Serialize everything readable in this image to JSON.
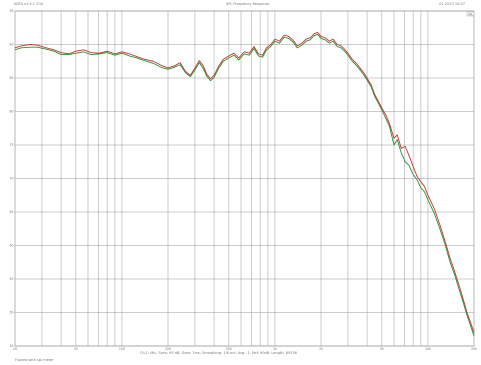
{
  "header": {
    "left": "ARTA v1.9.1 ©IA",
    "center": "SPL Frequency Response",
    "right": "01-2023 10:47"
  },
  "footer": {
    "info": "Ch.1: Mic, Sens: 95 dB; Gate: 7ms; Smoothing: 1/6 oct; Avg.: 1; Ref: 90dB; Length: 65536",
    "note": "Fsaved with spl meter"
  },
  "chart_data": {
    "type": "line",
    "title": "SPL Frequency Response",
    "xlabel": "",
    "ylabel": "",
    "x_scale": "log",
    "xlim": [
      20,
      20000
    ],
    "ylim": [
      45,
      95
    ],
    "grid": true,
    "x_ticks": [
      "20",
      "50",
      "100",
      "200",
      "500",
      "1k",
      "2k",
      "5k",
      "10k",
      "20k"
    ],
    "y_ticks": [
      "95",
      "90",
      "85",
      "80",
      "75",
      "70",
      "65",
      "60",
      "55",
      "50",
      "45"
    ],
    "x_tick_values": [
      20,
      50,
      100,
      200,
      500,
      1000,
      2000,
      5000,
      10000,
      20000
    ],
    "y_tick_values": [
      95,
      90,
      85,
      80,
      75,
      70,
      65,
      60,
      55,
      50,
      45
    ],
    "legend_label": "SPL",
    "series": [
      {
        "color": "#c0392b",
        "points": [
          [
            20,
            89.5
          ],
          [
            22,
            89.8
          ],
          [
            25,
            90.0
          ],
          [
            28,
            89.9
          ],
          [
            32,
            89.5
          ],
          [
            36,
            89.2
          ],
          [
            40,
            88.8
          ],
          [
            45,
            88.6
          ],
          [
            50,
            89.0
          ],
          [
            56,
            89.2
          ],
          [
            63,
            88.8
          ],
          [
            71,
            88.7
          ],
          [
            80,
            89.0
          ],
          [
            90,
            88.6
          ],
          [
            100,
            88.9
          ],
          [
            112,
            88.6
          ],
          [
            125,
            88.2
          ],
          [
            140,
            87.8
          ],
          [
            160,
            87.5
          ],
          [
            180,
            86.9
          ],
          [
            200,
            86.5
          ],
          [
            220,
            86.8
          ],
          [
            240,
            87.3
          ],
          [
            260,
            86.0
          ],
          [
            280,
            85.4
          ],
          [
            300,
            86.5
          ],
          [
            320,
            87.6
          ],
          [
            340,
            86.8
          ],
          [
            360,
            85.5
          ],
          [
            380,
            84.9
          ],
          [
            400,
            85.4
          ],
          [
            430,
            86.8
          ],
          [
            460,
            87.8
          ],
          [
            500,
            88.3
          ],
          [
            540,
            88.7
          ],
          [
            580,
            88.0
          ],
          [
            630,
            88.9
          ],
          [
            680,
            88.7
          ],
          [
            730,
            89.7
          ],
          [
            780,
            88.6
          ],
          [
            830,
            88.4
          ],
          [
            880,
            89.5
          ],
          [
            940,
            90.0
          ],
          [
            1000,
            90.8
          ],
          [
            1070,
            90.5
          ],
          [
            1150,
            91.4
          ],
          [
            1230,
            91.2
          ],
          [
            1320,
            90.6
          ],
          [
            1400,
            89.8
          ],
          [
            1500,
            90.2
          ],
          [
            1600,
            90.8
          ],
          [
            1700,
            91.0
          ],
          [
            1800,
            91.6
          ],
          [
            1900,
            91.8
          ],
          [
            2000,
            91.2
          ],
          [
            2130,
            91.0
          ],
          [
            2270,
            90.5
          ],
          [
            2400,
            90.8
          ],
          [
            2550,
            90.0
          ],
          [
            2700,
            89.8
          ],
          [
            2850,
            89.3
          ],
          [
            3000,
            88.7
          ],
          [
            3200,
            87.8
          ],
          [
            3400,
            87.2
          ],
          [
            3600,
            86.5
          ],
          [
            3800,
            85.8
          ],
          [
            4000,
            85.0
          ],
          [
            4250,
            84.0
          ],
          [
            4500,
            82.5
          ],
          [
            4750,
            81.5
          ],
          [
            5000,
            80.5
          ],
          [
            5300,
            79.5
          ],
          [
            5600,
            78.2
          ],
          [
            6000,
            76.0
          ],
          [
            6300,
            76.5
          ],
          [
            6700,
            74.5
          ],
          [
            7100,
            74.8
          ],
          [
            7500,
            73.5
          ],
          [
            8000,
            71.8
          ],
          [
            8500,
            70.3
          ],
          [
            9000,
            69.5
          ],
          [
            9500,
            68.8
          ],
          [
            10000,
            67.5
          ],
          [
            11000,
            65.5
          ],
          [
            12000,
            63.0
          ],
          [
            13000,
            60.5
          ],
          [
            14000,
            58.0
          ],
          [
            15000,
            56.0
          ],
          [
            16000,
            54.0
          ],
          [
            17000,
            52.0
          ],
          [
            18000,
            50.0
          ],
          [
            19000,
            48.5
          ],
          [
            20000,
            47.0
          ]
        ]
      },
      {
        "color": "#2e8b3a",
        "points": [
          [
            20,
            89.2
          ],
          [
            22,
            89.5
          ],
          [
            25,
            89.6
          ],
          [
            28,
            89.6
          ],
          [
            32,
            89.3
          ],
          [
            36,
            89.0
          ],
          [
            40,
            88.5
          ],
          [
            45,
            88.5
          ],
          [
            50,
            88.7
          ],
          [
            56,
            88.9
          ],
          [
            63,
            88.5
          ],
          [
            71,
            88.6
          ],
          [
            80,
            88.8
          ],
          [
            90,
            88.4
          ],
          [
            100,
            88.7
          ],
          [
            112,
            88.3
          ],
          [
            125,
            88.0
          ],
          [
            140,
            87.6
          ],
          [
            160,
            87.2
          ],
          [
            180,
            86.6
          ],
          [
            200,
            86.3
          ],
          [
            220,
            86.6
          ],
          [
            240,
            87.0
          ],
          [
            260,
            85.8
          ],
          [
            280,
            85.2
          ],
          [
            300,
            86.2
          ],
          [
            320,
            87.3
          ],
          [
            340,
            86.4
          ],
          [
            360,
            85.2
          ],
          [
            380,
            84.6
          ],
          [
            400,
            85.1
          ],
          [
            430,
            86.5
          ],
          [
            460,
            87.5
          ],
          [
            500,
            88.0
          ],
          [
            540,
            88.4
          ],
          [
            580,
            87.7
          ],
          [
            630,
            88.6
          ],
          [
            680,
            88.4
          ],
          [
            730,
            89.4
          ],
          [
            780,
            88.3
          ],
          [
            830,
            88.1
          ],
          [
            880,
            89.2
          ],
          [
            940,
            89.7
          ],
          [
            1000,
            90.5
          ],
          [
            1070,
            90.2
          ],
          [
            1150,
            91.1
          ],
          [
            1230,
            90.9
          ],
          [
            1320,
            90.3
          ],
          [
            1400,
            89.5
          ],
          [
            1500,
            89.9
          ],
          [
            1600,
            90.5
          ],
          [
            1700,
            90.7
          ],
          [
            1800,
            91.3
          ],
          [
            1900,
            91.5
          ],
          [
            2000,
            90.9
          ],
          [
            2130,
            90.7
          ],
          [
            2270,
            90.2
          ],
          [
            2400,
            90.5
          ],
          [
            2550,
            89.7
          ],
          [
            2700,
            89.5
          ],
          [
            2850,
            89.0
          ],
          [
            3000,
            88.4
          ],
          [
            3200,
            87.5
          ],
          [
            3400,
            86.9
          ],
          [
            3600,
            86.2
          ],
          [
            3800,
            85.5
          ],
          [
            4000,
            84.7
          ],
          [
            4250,
            83.7
          ],
          [
            4500,
            82.2
          ],
          [
            4750,
            81.2
          ],
          [
            5000,
            80.2
          ],
          [
            5300,
            79.0
          ],
          [
            5600,
            77.8
          ],
          [
            6000,
            75.0
          ],
          [
            6300,
            75.8
          ],
          [
            6700,
            73.8
          ],
          [
            7100,
            72.5
          ],
          [
            7500,
            72.0
          ],
          [
            8000,
            70.6
          ],
          [
            8500,
            69.8
          ],
          [
            9000,
            68.6
          ],
          [
            9500,
            68.0
          ],
          [
            10000,
            66.8
          ],
          [
            11000,
            64.8
          ],
          [
            12000,
            62.4
          ],
          [
            13000,
            60.0
          ],
          [
            14000,
            57.4
          ],
          [
            15000,
            55.5
          ],
          [
            16000,
            53.4
          ],
          [
            17000,
            51.5
          ],
          [
            18000,
            49.6
          ],
          [
            19000,
            48.0
          ],
          [
            20000,
            46.5
          ]
        ]
      }
    ]
  }
}
